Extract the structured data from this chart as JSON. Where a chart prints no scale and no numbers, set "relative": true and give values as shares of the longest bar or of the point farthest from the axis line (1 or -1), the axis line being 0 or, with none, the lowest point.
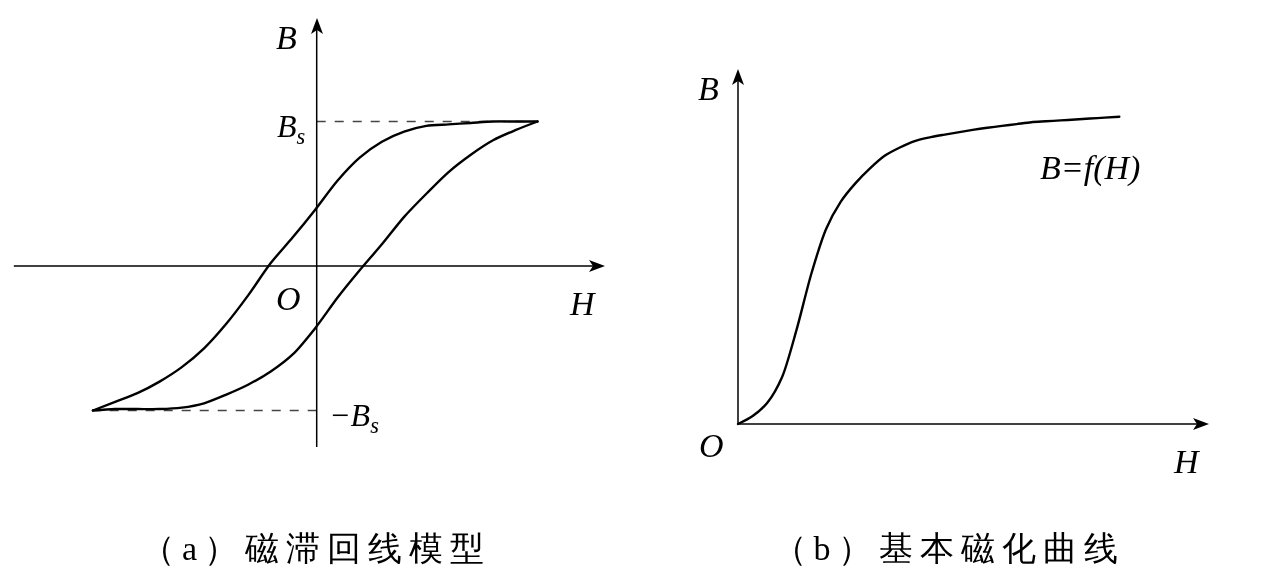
{
  "chart_data": [
    {
      "type": "line",
      "title": "（a）磁滞回线模型",
      "xlabel": "H",
      "ylabel": "B",
      "relative": true,
      "categories": [
        null,
        null,
        null,
        null,
        null,
        null,
        null,
        null,
        null,
        null,
        null,
        null,
        null,
        null,
        null,
        null,
        null,
        null,
        null,
        null,
        null
      ],
      "series": [
        {
          "color": "#000000",
          "values": [
            -1,
            -0.94,
            -0.88,
            -0.8,
            -0.7,
            -0.57,
            -0.4,
            -0.2,
            0.02,
            0.2,
            0.39,
            0.59,
            0.75,
            0.86,
            0.93,
            0.97,
            0.98,
            0.99,
            1,
            1,
            1
          ]
        },
        {
          "color": "#000000",
          "values": [
            -1,
            -0.99,
            -0.99,
            -0.99,
            -0.98,
            -0.95,
            -0.89,
            -0.82,
            -0.73,
            -0.61,
            -0.43,
            -0.22,
            -0.03,
            0.15,
            0.34,
            0.5,
            0.65,
            0.77,
            0.87,
            0.94,
            1
          ]
        }
      ],
      "ref_lines": [
        {
          "axis": "y",
          "value": 1,
          "label": "B$_{s}$",
          "color": "#444444",
          "line_style": "dashed"
        },
        {
          "axis": "y",
          "value": -1,
          "label": "−B$_{s}$",
          "color": "#444444",
          "line_style": "dashed"
        }
      ],
      "annotations": [
        "O"
      ]
    },
    {
      "type": "line",
      "title": "（b）基本磁化曲线",
      "xlabel": "H",
      "ylabel": "B",
      "relative": true,
      "categories": [
        null,
        null,
        null,
        null,
        null,
        null,
        null,
        null,
        null,
        null,
        null,
        null,
        null,
        null,
        null,
        null,
        null,
        null,
        null,
        null,
        null,
        null,
        null,
        null,
        null,
        null,
        null
      ],
      "series": [
        {
          "name": "B=f(H)",
          "color": "#000000",
          "values": [
            0,
            0.026,
            0.069,
            0.152,
            0.308,
            0.489,
            0.634,
            0.723,
            0.783,
            0.832,
            0.873,
            0.899,
            0.92,
            0.932,
            0.941,
            0.949,
            0.957,
            0.964,
            0.97,
            0.976,
            0.982,
            0.985,
            0.988,
            0.991,
            0.994,
            0.997,
            1
          ]
        }
      ],
      "annotations": [
        "O"
      ]
    }
  ]
}
